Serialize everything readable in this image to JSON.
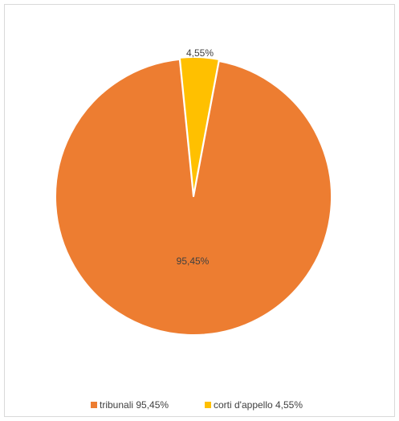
{
  "chart_data": {
    "type": "pie",
    "title": "",
    "slices": [
      {
        "label": "tribunali",
        "value": 95.45,
        "display": "95,45%",
        "color": "#ED7D31"
      },
      {
        "label": "corti d'appello",
        "value": 4.55,
        "display": "4,55%",
        "color": "#FFC000"
      }
    ],
    "legend": {
      "position": "bottom",
      "entries": [
        {
          "text": "tribunali 95,45%",
          "color": "#ED7D31"
        },
        {
          "text": "corti d'appello 4,55%",
          "color": "#FFC000"
        }
      ]
    }
  }
}
